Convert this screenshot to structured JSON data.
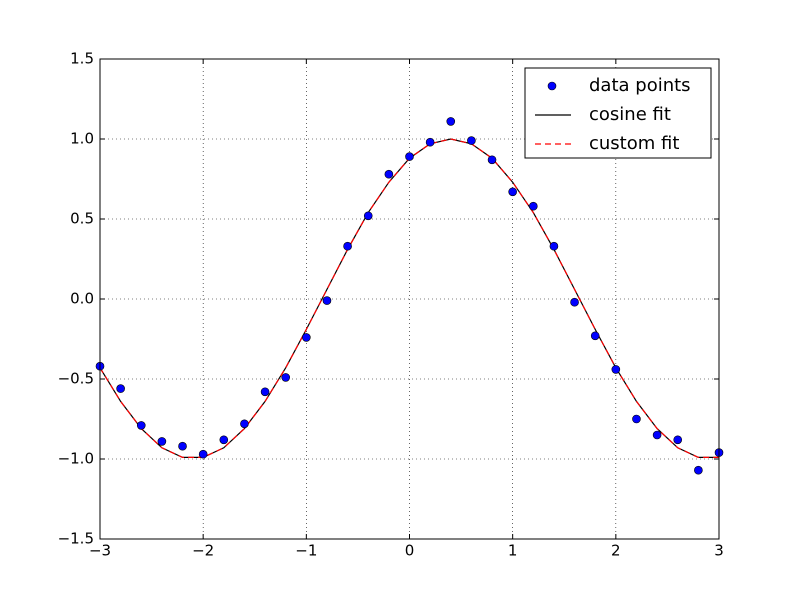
{
  "chart_data": {
    "type": "line",
    "x": [
      -3,
      -2.8,
      -2.6,
      -2.4,
      -2.2,
      -2,
      -1.8,
      -1.6,
      -1.4,
      -1.2,
      -1,
      -0.8,
      -0.6,
      -0.4,
      -0.2,
      0,
      0.2,
      0.4,
      0.6,
      0.8,
      1,
      1.2,
      1.4,
      1.6,
      1.8,
      2,
      2.2,
      2.4,
      2.6,
      2.8,
      3
    ],
    "series": [
      {
        "name": "data points",
        "color": "#0000ff",
        "style": "marker",
        "values": [
          -0.42,
          -0.56,
          -0.79,
          -0.89,
          -0.92,
          -0.97,
          -0.88,
          -0.78,
          -0.58,
          -0.49,
          -0.24,
          -0.01,
          0.33,
          0.52,
          0.78,
          0.89,
          0.98,
          1.11,
          0.99,
          0.87,
          0.67,
          0.58,
          0.33,
          -0.02,
          -0.23,
          -0.44,
          -0.75,
          -0.85,
          -0.88,
          -1.07,
          -0.96
        ]
      },
      {
        "name": "cosine fit",
        "color": "#000000",
        "style": "solid",
        "values": [
          -0.43,
          -0.64,
          -0.81,
          -0.93,
          -0.99,
          -0.99,
          -0.93,
          -0.81,
          -0.64,
          -0.43,
          -0.19,
          0.06,
          0.31,
          0.54,
          0.73,
          0.88,
          0.97,
          1.0,
          0.97,
          0.88,
          0.73,
          0.54,
          0.31,
          0.06,
          -0.19,
          -0.43,
          -0.64,
          -0.81,
          -0.93,
          -0.99,
          -0.99
        ]
      },
      {
        "name": "custom fit",
        "color": "#ff0000",
        "style": "dashed",
        "values": [
          -0.43,
          -0.64,
          -0.81,
          -0.93,
          -0.99,
          -0.99,
          -0.93,
          -0.81,
          -0.64,
          -0.43,
          -0.19,
          0.06,
          0.31,
          0.54,
          0.73,
          0.88,
          0.97,
          1.0,
          0.97,
          0.88,
          0.73,
          0.54,
          0.31,
          0.06,
          -0.19,
          -0.43,
          -0.64,
          -0.81,
          -0.93,
          -0.99,
          -0.99
        ]
      }
    ],
    "xlim": [
      -3,
      3
    ],
    "xticks": [
      {
        "value": -3,
        "label": "−3"
      },
      {
        "value": -2,
        "label": "−2"
      },
      {
        "value": -1,
        "label": "−1"
      },
      0,
      1,
      2,
      3
    ],
    "ylim": [
      -1.5,
      1.5
    ],
    "yticks": [
      {
        "value": -1.5,
        "label": "−1.5"
      },
      {
        "value": -1,
        "label": "−1.0"
      },
      {
        "value": -0.5,
        "label": "−0.5"
      },
      {
        "value": 0,
        "label": "0.0"
      },
      0.5,
      {
        "value": 1,
        "label": "1.0"
      },
      1.5
    ],
    "grid": true,
    "legend": "upper right"
  }
}
